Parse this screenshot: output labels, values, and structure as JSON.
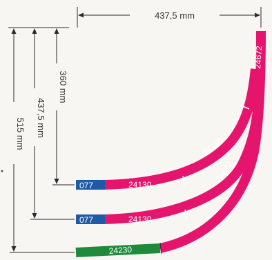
{
  "dimensions": {
    "top_width": "437,5 mm",
    "radius_small": "360 mm",
    "radius_mid": "437,5 mm",
    "radius_large": "515 mm"
  },
  "segments": {
    "curve_outer_end": "24672",
    "curve_inner_mid": "24130",
    "curve_mid_mid": "24672",
    "inner_start_code": "077",
    "inner_start_label": "24130",
    "mid_start_code": "077",
    "mid_start_label": "24130",
    "outer_start_label": "24230"
  },
  "colors": {
    "magenta": "#e5146c",
    "blue": "#1f5aa8",
    "green": "#1f8a3b",
    "dim_line": "#2b2b2b"
  }
}
